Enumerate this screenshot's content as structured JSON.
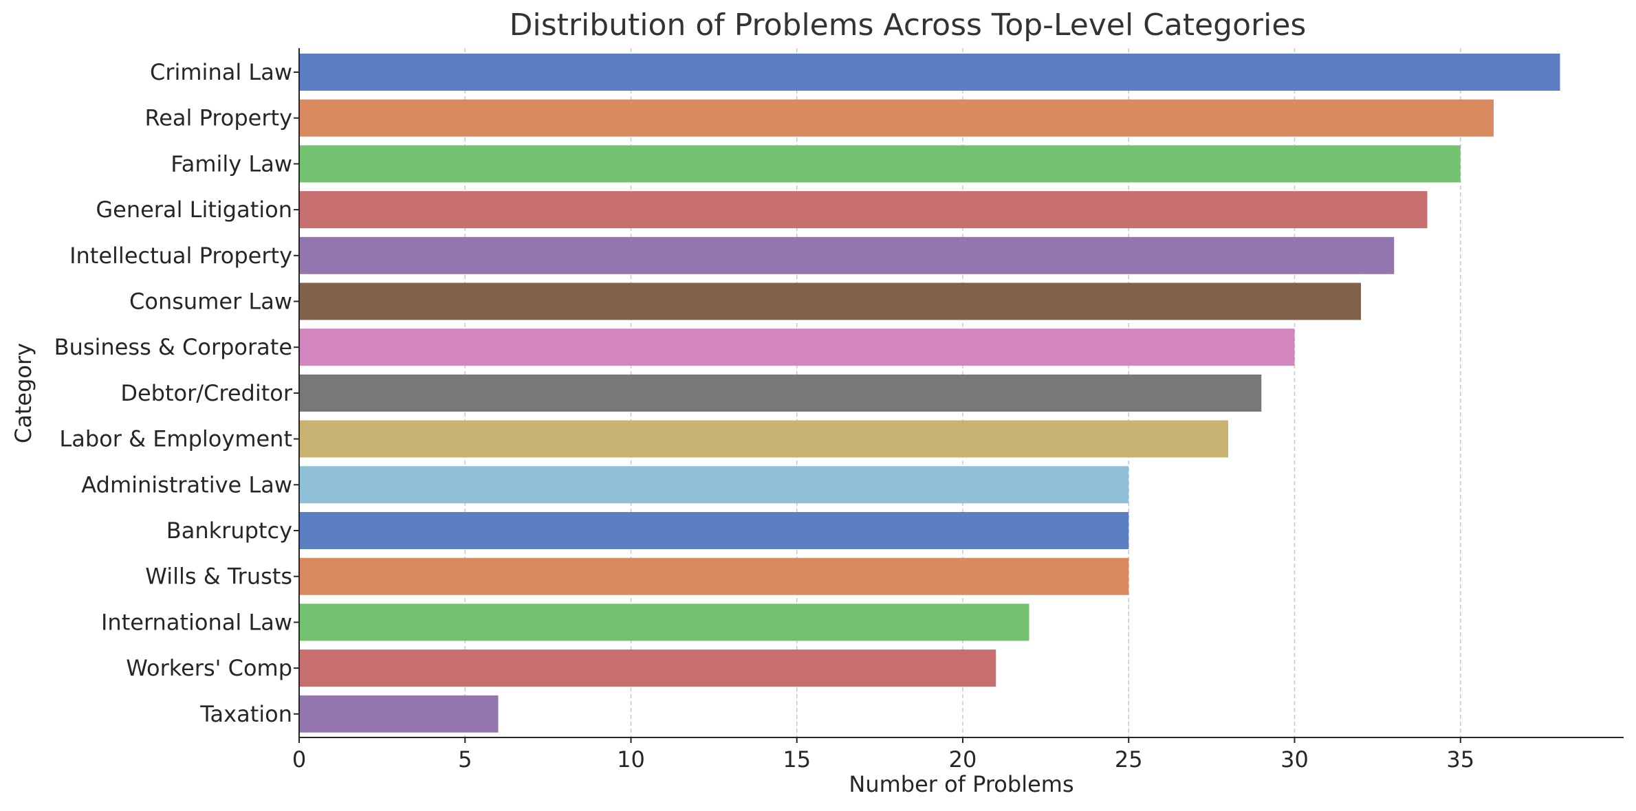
{
  "chart_data": {
    "type": "bar",
    "orientation": "horizontal",
    "title": "Distribution of Problems Across Top-Level Categories",
    "xlabel": "Number of Problems",
    "ylabel": "Category",
    "xlim": [
      0,
      40
    ],
    "xticks": [
      0,
      5,
      10,
      15,
      20,
      25,
      30,
      35
    ],
    "grid": "vertical dashed",
    "legend": "none",
    "categories": [
      "Criminal Law",
      "Real Property",
      "Family Law",
      "General Litigation",
      "Intellectual Property",
      "Consumer Law",
      "Business & Corporate",
      "Debtor/Creditor",
      "Labor & Employment",
      "Administrative Law",
      "Bankruptcy",
      "Wills & Trusts",
      "International Law",
      "Workers' Comp",
      "Taxation"
    ],
    "values": [
      38,
      36,
      35,
      34,
      33,
      32,
      30,
      29,
      28,
      25,
      25,
      25,
      22,
      21,
      6
    ],
    "colors": [
      "#5b7fc2",
      "#d98a5f",
      "#74c270",
      "#c76e6e",
      "#9476ae",
      "#7f6249",
      "#d286bd",
      "#787878",
      "#c8b373",
      "#8fc0d8",
      "#5b7fc2",
      "#d98a5f",
      "#74c270",
      "#c76e6e",
      "#9476ae"
    ]
  }
}
